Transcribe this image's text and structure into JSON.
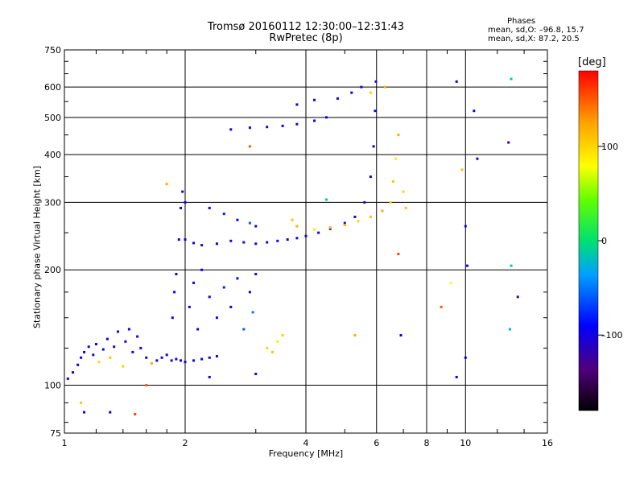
{
  "chart_data": {
    "type": "scatter",
    "title": "Tromsø 20160112 12:30:00–12:31:43",
    "subtitle": "RwPretec (8p)",
    "xlabel": "Frequency [MHz]",
    "ylabel": "Stationary phase Virtual Height [km]",
    "x_scale": "log",
    "y_scale": "log",
    "xlim": [
      1,
      16
    ],
    "ylim": [
      75,
      750
    ],
    "x_ticks": [
      1,
      2,
      4,
      6,
      8,
      10,
      16
    ],
    "x_tick_labels": [
      "1",
      "2",
      "4",
      "6",
      "8",
      "10",
      "16"
    ],
    "y_ticks": [
      75,
      100,
      200,
      300,
      400,
      500,
      600,
      750
    ],
    "y_tick_labels": [
      "75",
      "100",
      "200",
      "300",
      "400",
      "500",
      "600",
      "750"
    ],
    "grid": true,
    "colorbar": {
      "label": "[deg]",
      "range": [
        -180,
        180
      ],
      "ticks": [
        100,
        0,
        -100
      ],
      "tick_labels": [
        "100",
        "0",
        "–100"
      ],
      "colormap": "rainbow (black–purple–blue–cyan–green–yellow–orange–red)"
    },
    "phase_stats": {
      "title": "Phases",
      "line1": "mean, sd,O: –96.8, 15.7",
      "line2": "mean, sd,X:  87.2, 20.5"
    },
    "points": [
      {
        "x": 1.02,
        "y": 104,
        "phase": -110
      },
      {
        "x": 1.05,
        "y": 108,
        "phase": -105
      },
      {
        "x": 1.08,
        "y": 113,
        "phase": -100
      },
      {
        "x": 1.1,
        "y": 118,
        "phase": -95
      },
      {
        "x": 1.12,
        "y": 122,
        "phase": -100
      },
      {
        "x": 1.15,
        "y": 126,
        "phase": -105
      },
      {
        "x": 1.18,
        "y": 120,
        "phase": -110
      },
      {
        "x": 1.2,
        "y": 128,
        "phase": -100
      },
      {
        "x": 1.22,
        "y": 115,
        "phase": 100
      },
      {
        "x": 1.25,
        "y": 124,
        "phase": -95
      },
      {
        "x": 1.28,
        "y": 132,
        "phase": -100
      },
      {
        "x": 1.3,
        "y": 118,
        "phase": 110
      },
      {
        "x": 1.33,
        "y": 126,
        "phase": -105
      },
      {
        "x": 1.36,
        "y": 138,
        "phase": -100
      },
      {
        "x": 1.4,
        "y": 112,
        "phase": 100
      },
      {
        "x": 1.42,
        "y": 130,
        "phase": -110
      },
      {
        "x": 1.45,
        "y": 140,
        "phase": -95
      },
      {
        "x": 1.48,
        "y": 122,
        "phase": -100
      },
      {
        "x": 1.52,
        "y": 134,
        "phase": -105
      },
      {
        "x": 1.55,
        "y": 125,
        "phase": -100
      },
      {
        "x": 1.6,
        "y": 118,
        "phase": -100
      },
      {
        "x": 1.65,
        "y": 114,
        "phase": 120
      },
      {
        "x": 1.7,
        "y": 116,
        "phase": -100
      },
      {
        "x": 1.75,
        "y": 118,
        "phase": -105
      },
      {
        "x": 1.8,
        "y": 120,
        "phase": -100
      },
      {
        "x": 1.85,
        "y": 116,
        "phase": -110
      },
      {
        "x": 1.9,
        "y": 117,
        "phase": -100
      },
      {
        "x": 1.95,
        "y": 116,
        "phase": -105
      },
      {
        "x": 2.0,
        "y": 115,
        "phase": -100
      },
      {
        "x": 2.1,
        "y": 116,
        "phase": -100
      },
      {
        "x": 2.2,
        "y": 117,
        "phase": -95
      },
      {
        "x": 2.3,
        "y": 118,
        "phase": -100
      },
      {
        "x": 2.4,
        "y": 119,
        "phase": -110
      },
      {
        "x": 1.86,
        "y": 150,
        "phase": -100
      },
      {
        "x": 1.88,
        "y": 175,
        "phase": -95
      },
      {
        "x": 1.9,
        "y": 195,
        "phase": -100
      },
      {
        "x": 1.93,
        "y": 240,
        "phase": -105
      },
      {
        "x": 1.95,
        "y": 290,
        "phase": -110
      },
      {
        "x": 1.97,
        "y": 320,
        "phase": -100
      },
      {
        "x": 2.0,
        "y": 300,
        "phase": -100
      },
      {
        "x": 2.05,
        "y": 160,
        "phase": -100
      },
      {
        "x": 2.1,
        "y": 185,
        "phase": -95
      },
      {
        "x": 2.15,
        "y": 140,
        "phase": -100
      },
      {
        "x": 2.2,
        "y": 200,
        "phase": -105
      },
      {
        "x": 2.3,
        "y": 170,
        "phase": -100
      },
      {
        "x": 2.4,
        "y": 150,
        "phase": -100
      },
      {
        "x": 2.5,
        "y": 180,
        "phase": -80
      },
      {
        "x": 2.6,
        "y": 160,
        "phase": -100
      },
      {
        "x": 2.7,
        "y": 190,
        "phase": -90
      },
      {
        "x": 2.8,
        "y": 140,
        "phase": -60
      },
      {
        "x": 2.9,
        "y": 175,
        "phase": -100
      },
      {
        "x": 3.0,
        "y": 195,
        "phase": -100
      },
      {
        "x": 2.95,
        "y": 155,
        "phase": -50
      },
      {
        "x": 3.2,
        "y": 125,
        "phase": 100
      },
      {
        "x": 3.3,
        "y": 122,
        "phase": 110
      },
      {
        "x": 3.4,
        "y": 130,
        "phase": 90
      },
      {
        "x": 3.5,
        "y": 135,
        "phase": 100
      },
      {
        "x": 2.0,
        "y": 240,
        "phase": -100
      },
      {
        "x": 2.1,
        "y": 235,
        "phase": -100
      },
      {
        "x": 2.2,
        "y": 232,
        "phase": -105
      },
      {
        "x": 2.4,
        "y": 234,
        "phase": -100
      },
      {
        "x": 2.6,
        "y": 238,
        "phase": -95
      },
      {
        "x": 2.8,
        "y": 236,
        "phase": -100
      },
      {
        "x": 3.0,
        "y": 234,
        "phase": -100
      },
      {
        "x": 3.2,
        "y": 236,
        "phase": -105
      },
      {
        "x": 3.4,
        "y": 238,
        "phase": -100
      },
      {
        "x": 3.6,
        "y": 240,
        "phase": -100
      },
      {
        "x": 3.8,
        "y": 242,
        "phase": -95
      },
      {
        "x": 4.0,
        "y": 245,
        "phase": -100
      },
      {
        "x": 4.3,
        "y": 250,
        "phase": -100
      },
      {
        "x": 4.6,
        "y": 256,
        "phase": -100
      },
      {
        "x": 5.0,
        "y": 265,
        "phase": -100
      },
      {
        "x": 5.3,
        "y": 275,
        "phase": -100
      },
      {
        "x": 5.6,
        "y": 300,
        "phase": -105
      },
      {
        "x": 5.8,
        "y": 350,
        "phase": -100
      },
      {
        "x": 5.9,
        "y": 420,
        "phase": -100
      },
      {
        "x": 5.95,
        "y": 520,
        "phase": -100
      },
      {
        "x": 5.98,
        "y": 620,
        "phase": -110
      },
      {
        "x": 2.3,
        "y": 290,
        "phase": -100
      },
      {
        "x": 2.5,
        "y": 280,
        "phase": -80
      },
      {
        "x": 2.7,
        "y": 270,
        "phase": -100
      },
      {
        "x": 2.9,
        "y": 265,
        "phase": -60
      },
      {
        "x": 3.0,
        "y": 260,
        "phase": -100
      },
      {
        "x": 3.7,
        "y": 270,
        "phase": 110
      },
      {
        "x": 3.8,
        "y": 260,
        "phase": 120
      },
      {
        "x": 4.2,
        "y": 255,
        "phase": 90
      },
      {
        "x": 4.6,
        "y": 258,
        "phase": 110
      },
      {
        "x": 5.0,
        "y": 262,
        "phase": 120
      },
      {
        "x": 5.4,
        "y": 268,
        "phase": 100
      },
      {
        "x": 5.8,
        "y": 275,
        "phase": 110
      },
      {
        "x": 6.2,
        "y": 285,
        "phase": 120
      },
      {
        "x": 6.5,
        "y": 300,
        "phase": 100
      },
      {
        "x": 6.6,
        "y": 340,
        "phase": 110
      },
      {
        "x": 6.7,
        "y": 390,
        "phase": 90
      },
      {
        "x": 6.8,
        "y": 450,
        "phase": 120
      },
      {
        "x": 7.0,
        "y": 320,
        "phase": 100
      },
      {
        "x": 7.1,
        "y": 290,
        "phase": 110
      },
      {
        "x": 6.3,
        "y": 600,
        "phase": 120
      },
      {
        "x": 5.8,
        "y": 580,
        "phase": 100
      },
      {
        "x": 2.6,
        "y": 465,
        "phase": -100
      },
      {
        "x": 2.9,
        "y": 470,
        "phase": -100
      },
      {
        "x": 3.2,
        "y": 472,
        "phase": -105
      },
      {
        "x": 3.5,
        "y": 475,
        "phase": -100
      },
      {
        "x": 3.8,
        "y": 480,
        "phase": -100
      },
      {
        "x": 4.2,
        "y": 490,
        "phase": -95
      },
      {
        "x": 4.5,
        "y": 500,
        "phase": -100
      },
      {
        "x": 3.8,
        "y": 540,
        "phase": -100
      },
      {
        "x": 4.2,
        "y": 555,
        "phase": -100
      },
      {
        "x": 4.8,
        "y": 560,
        "phase": -105
      },
      {
        "x": 5.2,
        "y": 580,
        "phase": -100
      },
      {
        "x": 5.5,
        "y": 600,
        "phase": -100
      },
      {
        "x": 9.5,
        "y": 620,
        "phase": -110
      },
      {
        "x": 13.0,
        "y": 630,
        "phase": -10
      },
      {
        "x": 10.5,
        "y": 520,
        "phase": -100
      },
      {
        "x": 10.7,
        "y": 390,
        "phase": -110
      },
      {
        "x": 12.8,
        "y": 430,
        "phase": -120
      },
      {
        "x": 10.0,
        "y": 260,
        "phase": -100
      },
      {
        "x": 10.1,
        "y": 205,
        "phase": -100
      },
      {
        "x": 13.0,
        "y": 205,
        "phase": -10
      },
      {
        "x": 13.5,
        "y": 170,
        "phase": -130
      },
      {
        "x": 9.2,
        "y": 185,
        "phase": 80
      },
      {
        "x": 8.7,
        "y": 160,
        "phase": 150
      },
      {
        "x": 12.9,
        "y": 140,
        "phase": -20
      },
      {
        "x": 6.9,
        "y": 135,
        "phase": -100
      },
      {
        "x": 5.3,
        "y": 135,
        "phase": 120
      },
      {
        "x": 9.5,
        "y": 105,
        "phase": -100
      },
      {
        "x": 10.0,
        "y": 118,
        "phase": -100
      },
      {
        "x": 1.1,
        "y": 90,
        "phase": 110
      },
      {
        "x": 1.12,
        "y": 85,
        "phase": -100
      },
      {
        "x": 1.3,
        "y": 85,
        "phase": -100
      },
      {
        "x": 1.5,
        "y": 84,
        "phase": 160
      },
      {
        "x": 1.6,
        "y": 100,
        "phase": 150
      },
      {
        "x": 2.3,
        "y": 105,
        "phase": -100
      },
      {
        "x": 3.0,
        "y": 107,
        "phase": -100
      },
      {
        "x": 2.9,
        "y": 420,
        "phase": 150
      },
      {
        "x": 1.8,
        "y": 335,
        "phase": 120
      },
      {
        "x": 4.5,
        "y": 305,
        "phase": -10
      },
      {
        "x": 6.8,
        "y": 220,
        "phase": 160
      },
      {
        "x": 9.8,
        "y": 365,
        "phase": 110
      }
    ]
  }
}
